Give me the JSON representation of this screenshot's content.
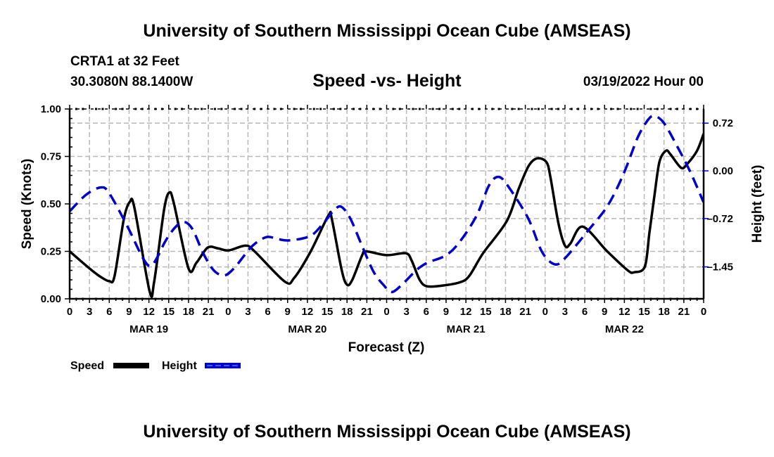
{
  "header": {
    "title": "University of Southern Mississippi Ocean Cube (AMSEAS)",
    "station": "CRTA1 at 32 Feet",
    "coordinates": "30.3080N  88.1400W",
    "subtitle": "Speed -vs- Height",
    "datetime": "03/19/2022 Hour 00"
  },
  "footer": {
    "title": "University of Southern Mississippi Ocean Cube (AMSEAS)"
  },
  "chart_data": {
    "type": "line",
    "title": "Speed -vs- Height",
    "xlabel": "Forecast (Z)",
    "ylabel": "Speed (Knots)",
    "y2label": "Height (feet)",
    "x_unit": "forecast hours from 03/19/2022 00Z",
    "xlim": [
      0,
      96
    ],
    "ylim": [
      0,
      1
    ],
    "y2lim": [
      -2.0,
      0.87
    ],
    "x_ticks": [
      0,
      3,
      6,
      9,
      12,
      15,
      18,
      21,
      24,
      27,
      30,
      33,
      36,
      39,
      42,
      45,
      48,
      51,
      54,
      57,
      60,
      63,
      66,
      69,
      72,
      75,
      78,
      81,
      84,
      87,
      90,
      93,
      96
    ],
    "x_tick_labels": [
      "0",
      "3",
      "6",
      "9",
      "12",
      "15",
      "18",
      "21",
      "0",
      "3",
      "6",
      "9",
      "12",
      "15",
      "18",
      "21",
      "0",
      "3",
      "6",
      "9",
      "12",
      "15",
      "18",
      "21",
      "0",
      "3",
      "6",
      "9",
      "12",
      "15",
      "18",
      "21",
      "0"
    ],
    "date_labels": [
      {
        "label": "MAR 19",
        "hour": 12
      },
      {
        "label": "MAR 20",
        "hour": 36
      },
      {
        "label": "MAR 21",
        "hour": 60
      },
      {
        "label": "MAR 22",
        "hour": 84
      }
    ],
    "y_ticks": [
      0.0,
      0.25,
      0.5,
      0.75,
      1.0
    ],
    "y_tick_labels": [
      "0.00",
      "0.25",
      "0.50",
      "0.75",
      "1.00"
    ],
    "y2_ticks": [
      0.72,
      0.0,
      -0.72,
      -1.45
    ],
    "y2_tick_labels": [
      "0.72",
      "0.00",
      "–0.72",
      "–1.45"
    ],
    "grid": true,
    "legend_position": "bottom-left",
    "series": [
      {
        "name": "Speed",
        "axis": "left",
        "color": "#000000",
        "style": "solid",
        "points": [
          [
            0,
            0.25
          ],
          [
            3,
            0.16
          ],
          [
            4.5,
            0.12
          ],
          [
            6,
            0.093
          ],
          [
            6.8,
            0.12
          ],
          [
            8.2,
            0.42
          ],
          [
            9.1,
            0.51
          ],
          [
            9.8,
            0.48
          ],
          [
            12.1,
            0.04
          ],
          [
            12.8,
            0.09
          ],
          [
            14.3,
            0.47
          ],
          [
            15.1,
            0.56
          ],
          [
            15.8,
            0.5
          ],
          [
            18,
            0.16
          ],
          [
            19.2,
            0.19
          ],
          [
            20.9,
            0.27
          ],
          [
            22.5,
            0.265
          ],
          [
            24.1,
            0.255
          ],
          [
            26.6,
            0.28
          ],
          [
            28,
            0.25
          ],
          [
            32.6,
            0.09
          ],
          [
            34,
            0.11
          ],
          [
            36.5,
            0.25
          ],
          [
            39.2,
            0.44
          ],
          [
            39.7,
            0.42
          ],
          [
            41.2,
            0.15
          ],
          [
            42,
            0.074
          ],
          [
            42.8,
            0.1
          ],
          [
            44.3,
            0.23
          ],
          [
            44.9,
            0.25
          ],
          [
            48,
            0.23
          ],
          [
            50.9,
            0.24
          ],
          [
            51.8,
            0.2
          ],
          [
            53,
            0.1
          ],
          [
            54.1,
            0.066
          ],
          [
            56.5,
            0.07
          ],
          [
            59.1,
            0.087
          ],
          [
            60.5,
            0.12
          ],
          [
            62.6,
            0.24
          ],
          [
            66.2,
            0.41
          ],
          [
            68,
            0.58
          ],
          [
            69.5,
            0.7
          ],
          [
            70.8,
            0.74
          ],
          [
            72.2,
            0.72
          ],
          [
            72.8,
            0.64
          ],
          [
            74,
            0.4
          ],
          [
            75,
            0.28
          ],
          [
            75.8,
            0.29
          ],
          [
            77.7,
            0.38
          ],
          [
            81.4,
            0.25
          ],
          [
            84.5,
            0.15
          ],
          [
            85.5,
            0.14
          ],
          [
            87.1,
            0.17
          ],
          [
            87.8,
            0.35
          ],
          [
            88.5,
            0.53
          ],
          [
            89.3,
            0.72
          ],
          [
            90.3,
            0.78
          ],
          [
            91,
            0.76
          ],
          [
            92.6,
            0.69
          ],
          [
            93.5,
            0.71
          ],
          [
            95,
            0.78
          ],
          [
            96,
            0.87
          ]
        ]
      },
      {
        "name": "Height",
        "axis": "right",
        "color": "#0000cc",
        "style": "dashed",
        "points": [
          [
            0,
            -0.61
          ],
          [
            2.5,
            -0.36
          ],
          [
            4.7,
            -0.25
          ],
          [
            6,
            -0.34
          ],
          [
            8.8,
            -0.85
          ],
          [
            11,
            -1.3
          ],
          [
            12.2,
            -1.44
          ],
          [
            13.3,
            -1.3
          ],
          [
            14.5,
            -1.06
          ],
          [
            16,
            -0.85
          ],
          [
            17.3,
            -0.77
          ],
          [
            18.6,
            -0.88
          ],
          [
            20.2,
            -1.24
          ],
          [
            21.8,
            -1.5
          ],
          [
            23.4,
            -1.58
          ],
          [
            25,
            -1.46
          ],
          [
            27.6,
            -1.14
          ],
          [
            29.8,
            -1.0
          ],
          [
            31.5,
            -1.03
          ],
          [
            33.3,
            -1.05
          ],
          [
            36.5,
            -0.98
          ],
          [
            38.5,
            -0.78
          ],
          [
            40,
            -0.6
          ],
          [
            41.1,
            -0.54
          ],
          [
            42.5,
            -0.72
          ],
          [
            44.3,
            -1.14
          ],
          [
            46,
            -1.52
          ],
          [
            47.5,
            -1.72
          ],
          [
            48.8,
            -1.83
          ],
          [
            50.5,
            -1.7
          ],
          [
            52.5,
            -1.5
          ],
          [
            54.1,
            -1.39
          ],
          [
            56.9,
            -1.28
          ],
          [
            59,
            -1.08
          ],
          [
            61.6,
            -0.68
          ],
          [
            63.5,
            -0.22
          ],
          [
            64.9,
            -0.09
          ],
          [
            66.3,
            -0.22
          ],
          [
            69.4,
            -0.71
          ],
          [
            71.5,
            -1.22
          ],
          [
            73.4,
            -1.41
          ],
          [
            75,
            -1.32
          ],
          [
            78.6,
            -0.89
          ],
          [
            81.5,
            -0.52
          ],
          [
            83.9,
            -0.04
          ],
          [
            86,
            0.5
          ],
          [
            87.5,
            0.76
          ],
          [
            88.5,
            0.83
          ],
          [
            90,
            0.72
          ],
          [
            92.1,
            0.35
          ],
          [
            94,
            -0.02
          ],
          [
            95.8,
            -0.43
          ],
          [
            96,
            -0.47
          ]
        ]
      }
    ]
  }
}
